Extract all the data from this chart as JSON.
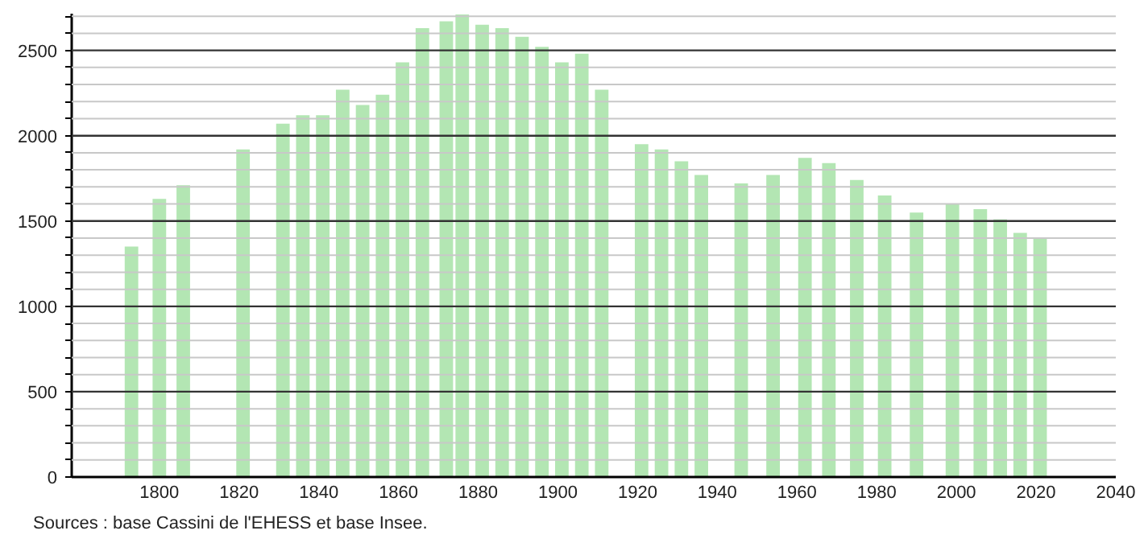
{
  "chart_data": {
    "type": "bar",
    "x": [
      1793,
      1800,
      1806,
      1821,
      1831,
      1836,
      1841,
      1846,
      1851,
      1856,
      1861,
      1866,
      1872,
      1876,
      1881,
      1886,
      1891,
      1896,
      1901,
      1906,
      1911,
      1921,
      1926,
      1931,
      1936,
      1946,
      1954,
      1962,
      1968,
      1975,
      1982,
      1990,
      1999,
      2006,
      2011,
      2016,
      2021
    ],
    "values": [
      1350,
      1630,
      1710,
      1920,
      2070,
      2120,
      2120,
      2270,
      2180,
      2240,
      2430,
      2630,
      2670,
      2710,
      2650,
      2630,
      2580,
      2520,
      2430,
      2480,
      2270,
      1950,
      1920,
      1850,
      1770,
      1720,
      1770,
      1870,
      1840,
      1740,
      1650,
      1550,
      1600,
      1570,
      1510,
      1430,
      1400
    ],
    "color": "#b3e6b3",
    "xlim": [
      1778,
      2040
    ],
    "xticks": [
      1800,
      1820,
      1840,
      1860,
      1880,
      1900,
      1920,
      1940,
      1960,
      1980,
      2000,
      2020,
      2040
    ],
    "ylim": [
      0,
      2715
    ],
    "yticks": [
      0,
      {
        "value": 100,
        "label": null
      },
      {
        "value": 200,
        "label": null
      },
      {
        "value": 300,
        "label": null
      },
      {
        "value": 400,
        "label": null
      },
      500,
      {
        "value": 600,
        "label": null
      },
      {
        "value": 700,
        "label": null
      },
      {
        "value": 800,
        "label": null
      },
      {
        "value": 900,
        "label": null
      },
      1000,
      {
        "value": 1100,
        "label": null
      },
      {
        "value": 1200,
        "label": null
      },
      {
        "value": 1300,
        "label": null
      },
      {
        "value": 1400,
        "label": null
      },
      1500,
      {
        "value": 1600,
        "label": null
      },
      {
        "value": 1700,
        "label": null
      },
      {
        "value": 1800,
        "label": null
      },
      {
        "value": 1900,
        "label": null
      },
      2000,
      {
        "value": 2100,
        "label": null
      },
      {
        "value": 2200,
        "label": null
      },
      {
        "value": 2300,
        "label": null
      },
      {
        "value": 2400,
        "label": null
      },
      2500,
      {
        "value": 2600,
        "label": null
      },
      {
        "value": 2700,
        "label": null
      }
    ],
    "grid": "y",
    "annotations": [
      "Sources : base Cassini de l'EHESS et base Insee."
    ]
  }
}
